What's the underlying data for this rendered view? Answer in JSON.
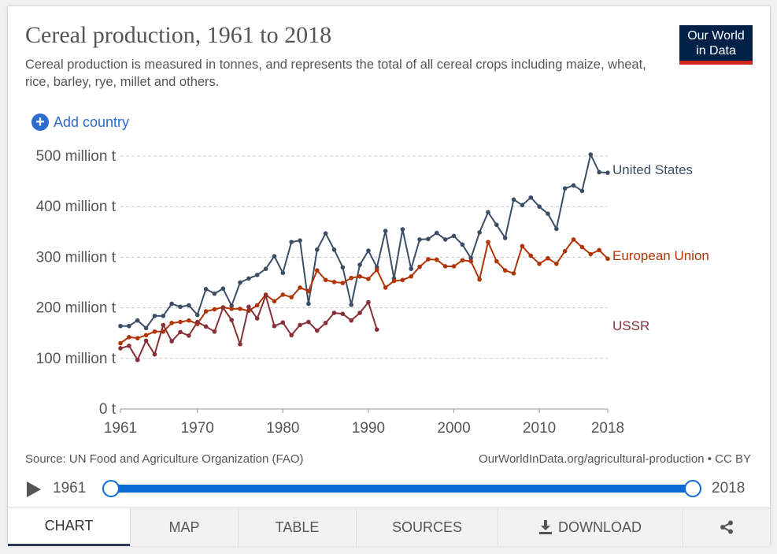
{
  "header": {
    "title": "Cereal production, 1961 to 2018",
    "subtitle": "Cereal production is measured in tonnes, and represents the total of all cereal crops including maize, wheat, rice, barley, rye, millet and others.",
    "logo_line1": "Our World",
    "logo_line2": "in Data"
  },
  "controls": {
    "add_country_label": "Add country"
  },
  "footer": {
    "source": "Source: UN Food and Agriculture Organization (FAO)",
    "license": "OurWorldInData.org/agricultural-production • CC BY"
  },
  "timeline": {
    "start_label": "1961",
    "end_label": "2018"
  },
  "tabs": [
    "CHART",
    "MAP",
    "TABLE",
    "SOURCES",
    "DOWNLOAD"
  ],
  "chart_data": {
    "type": "line",
    "title": "Cereal production, 1961 to 2018",
    "xlabel": "",
    "ylabel": "",
    "xlim": [
      1961,
      2018
    ],
    "ylim": [
      0,
      500
    ],
    "x_ticks": [
      1961,
      1970,
      1980,
      1990,
      2000,
      2010,
      2018
    ],
    "y_ticks": [
      0,
      100,
      200,
      300,
      400,
      500
    ],
    "y_tick_labels": [
      "0 t",
      "100 million t",
      "200 million t",
      "300 million t",
      "400 million t",
      "500 million t"
    ],
    "grid": true,
    "series": [
      {
        "name": "United States",
        "color": "#3c4e66",
        "x": [
          1961,
          1962,
          1963,
          1964,
          1965,
          1966,
          1967,
          1968,
          1969,
          1970,
          1971,
          1972,
          1973,
          1974,
          1975,
          1976,
          1977,
          1978,
          1979,
          1980,
          1981,
          1982,
          1983,
          1984,
          1985,
          1986,
          1987,
          1988,
          1989,
          1990,
          1991,
          1992,
          1993,
          1994,
          1995,
          1996,
          1997,
          1998,
          1999,
          2000,
          2001,
          2002,
          2003,
          2004,
          2005,
          2006,
          2007,
          2008,
          2009,
          2010,
          2011,
          2012,
          2013,
          2014,
          2015,
          2016,
          2017,
          2018
        ],
        "values": [
          164,
          164,
          175,
          160,
          184,
          184,
          208,
          202,
          205,
          186,
          237,
          228,
          238,
          204,
          250,
          258,
          265,
          277,
          302,
          269,
          330,
          333,
          208,
          315,
          347,
          315,
          280,
          206,
          285,
          313,
          280,
          352,
          258,
          355,
          277,
          335,
          336,
          348,
          335,
          342,
          325,
          298,
          349,
          389,
          364,
          338,
          414,
          403,
          418,
          400,
          386,
          356,
          436,
          442,
          431,
          503,
          468,
          467
        ]
      },
      {
        "name": "European Union",
        "color": "#b13507",
        "x": [
          1961,
          1962,
          1963,
          1964,
          1965,
          1966,
          1967,
          1968,
          1969,
          1970,
          1971,
          1972,
          1973,
          1974,
          1975,
          1976,
          1977,
          1978,
          1979,
          1980,
          1981,
          1982,
          1983,
          1984,
          1985,
          1986,
          1987,
          1988,
          1989,
          1990,
          1991,
          1992,
          1993,
          1994,
          1995,
          1996,
          1997,
          1998,
          1999,
          2000,
          2001,
          2002,
          2003,
          2004,
          2005,
          2006,
          2007,
          2008,
          2009,
          2010,
          2011,
          2012,
          2013,
          2014,
          2015,
          2016,
          2017,
          2018
        ],
        "values": [
          130,
          142,
          140,
          146,
          153,
          153,
          170,
          172,
          175,
          168,
          193,
          197,
          201,
          198,
          198,
          194,
          205,
          226,
          213,
          226,
          221,
          240,
          233,
          274,
          255,
          251,
          249,
          259,
          262,
          257,
          275,
          240,
          253,
          255,
          262,
          281,
          296,
          295,
          282,
          282,
          294,
          292,
          256,
          330,
          292,
          274,
          268,
          322,
          303,
          287,
          298,
          287,
          312,
          335,
          320,
          306,
          314,
          297
        ]
      },
      {
        "name": "USSR",
        "color": "#883039",
        "x": [
          1961,
          1962,
          1963,
          1964,
          1965,
          1966,
          1967,
          1968,
          1969,
          1970,
          1971,
          1972,
          1973,
          1974,
          1975,
          1976,
          1977,
          1978,
          1979,
          1980,
          1981,
          1982,
          1983,
          1984,
          1985,
          1986,
          1987,
          1988,
          1989,
          1990,
          1991
        ],
        "values": [
          120,
          125,
          97,
          135,
          108,
          166,
          134,
          152,
          145,
          172,
          163,
          153,
          200,
          176,
          128,
          202,
          179,
          224,
          164,
          171,
          146,
          166,
          172,
          155,
          170,
          190,
          188,
          175,
          190,
          211,
          157
        ]
      }
    ]
  }
}
